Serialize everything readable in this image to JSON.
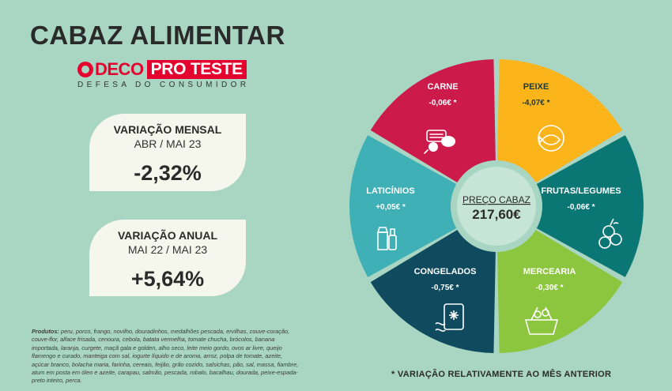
{
  "title": "CABAZ ALIMENTAR",
  "logo": {
    "brand": "DECO",
    "pro_teste": "PRO TESTE",
    "subtitle": "DEFESA DO CONSUMIDOR"
  },
  "monthly": {
    "label": "VARIAÇÃO MENSAL",
    "period": "ABR / MAI 23",
    "value": "-2,32%"
  },
  "annual": {
    "label": "VARIAÇÃO ANUAL",
    "period": "MAI 22 / MAI 23",
    "value": "+5,64%"
  },
  "center": {
    "label": "PREÇO CABAZ",
    "value": "217,60€"
  },
  "segments": [
    {
      "name": "CARNE",
      "value": "-0,06€ *",
      "color": "#cc1b4a",
      "icon": "meat-icon"
    },
    {
      "name": "PEIXE",
      "value": "-4,07€ *",
      "color": "#fbb41a",
      "icon": "fish-icon"
    },
    {
      "name": "FRUTAS/LEGUMES",
      "value": "-0,06€ *",
      "color": "#0a7774",
      "icon": "fruits-vegetables-icon"
    },
    {
      "name": "MERCEARIA",
      "value": "-0,30€ *",
      "color": "#8cc63f",
      "icon": "grocery-basket-icon"
    },
    {
      "name": "CONGELADOS",
      "value": "-0,75€ *",
      "color": "#0f4a5e",
      "icon": "frozen-bag-icon"
    },
    {
      "name": "LATICÍNIOS",
      "value": "+0,05€ *",
      "color": "#3fb0b6",
      "icon": "dairy-icon"
    }
  ],
  "products_label": "Produtos:",
  "products_text": "peru, porco, frango, novilho, douradinhos, medalhões pescada, ervilhas, couve-coração, couve-flor, alface frisada, cenoura, cebola, batata vermelha, tomate chucha, brócolos, banana importada, laranja, curgete, maçã gala e golden, alho seco, leite meio gordo, ovos ar livre, queijo flamengo e curado, manteiga com sal, iogurte líquido e de aroma, arroz, polpa de tomate, azeite, açúcar branco, bolacha maria, farinha, cereais, feijão, grão cozido, salsichas, pão, sal, massa, fiambre, atum em posta em óleo e azeite, carapau, salmão, pescada, robalo, bacalhau, dourada, peixe-espada-preto inteiro, perca.",
  "footnote": "* VARIAÇÃO RELATIVAMENTE AO MÊS ANTERIOR"
}
